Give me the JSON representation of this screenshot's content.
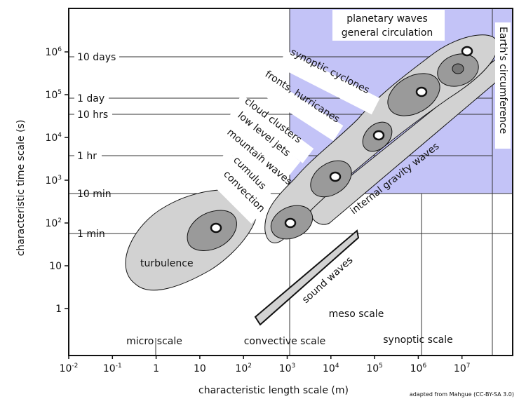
{
  "colors": {
    "synoptic_region": "#c3c3f7",
    "envelope": "#d2d2d2",
    "inner_region": "#9a9a9a",
    "core_region": "#777777"
  },
  "axes": {
    "x_label": "characteristic length scale (m)",
    "y_label": "characteristic time scale (s)",
    "x_ticks": [
      {
        "base": "10",
        "exp": "-2"
      },
      {
        "base": "10",
        "exp": "-1"
      },
      {
        "base": "1",
        "exp": ""
      },
      {
        "base": "10",
        "exp": ""
      },
      {
        "base": "10",
        "exp": "2"
      },
      {
        "base": "10",
        "exp": "3"
      },
      {
        "base": "10",
        "exp": "4"
      },
      {
        "base": "10",
        "exp": "5"
      },
      {
        "base": "10",
        "exp": "6"
      },
      {
        "base": "10",
        "exp": "7"
      }
    ],
    "y_ticks": [
      {
        "base": "1",
        "exp": ""
      },
      {
        "base": "10",
        "exp": ""
      },
      {
        "base": "10",
        "exp": "2"
      },
      {
        "base": "10",
        "exp": "3"
      },
      {
        "base": "10",
        "exp": "4"
      },
      {
        "base": "10",
        "exp": "5"
      },
      {
        "base": "10",
        "exp": "6"
      }
    ],
    "time_marks": [
      "10 days",
      "1 day",
      "10 hrs",
      "1 hr",
      "10 min",
      "1 min"
    ]
  },
  "scales": [
    "micro scale",
    "convective scale",
    "meso scale",
    "synoptic scale"
  ],
  "phenomena": {
    "planetary_1": "planetary waves",
    "planetary_2": "general circulation",
    "earth": "Earth's circumference",
    "synoptic": "synoptic cyclones",
    "fronts": "fronts, hurricanes",
    "cloud_1": "cloud clusters",
    "cloud_2": "low level jets",
    "cloud_3": "mountain waves",
    "cumulus_1": "cumulus",
    "cumulus_2": "convection",
    "turbulence": "turbulence",
    "gravity": "internal gravity waves",
    "sound": "sound waves"
  },
  "credit": "adapted from Mahgue (CC-BY-SA 3.0)"
}
